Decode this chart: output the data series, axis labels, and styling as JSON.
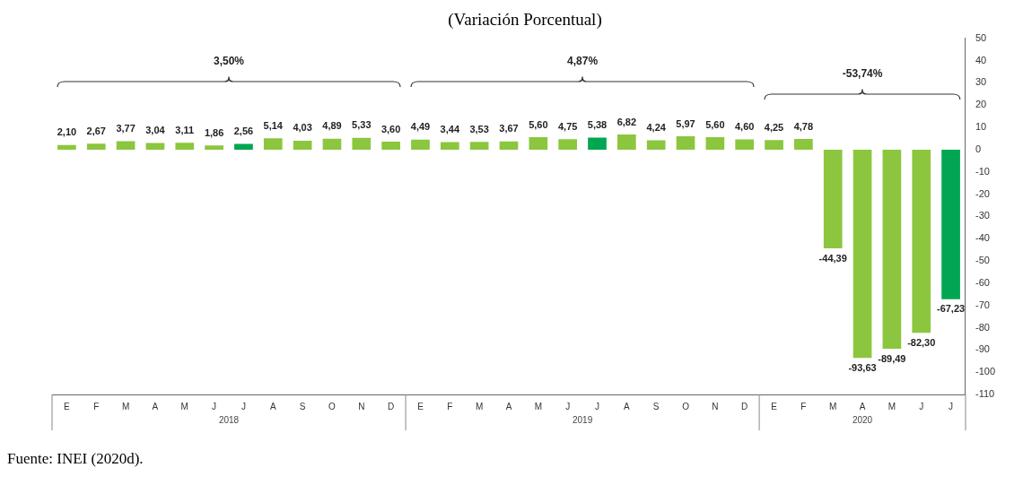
{
  "chart_data": {
    "type": "bar",
    "title": "(Variación Porcentual)",
    "categories": [
      "E",
      "F",
      "M",
      "A",
      "M",
      "J",
      "J",
      "A",
      "S",
      "O",
      "N",
      "D",
      "E",
      "F",
      "M",
      "A",
      "M",
      "J",
      "J",
      "A",
      "S",
      "O",
      "N",
      "D",
      "E",
      "F",
      "M",
      "A",
      "M",
      "J",
      "J"
    ],
    "values": [
      2.1,
      2.67,
      3.77,
      3.04,
      3.11,
      1.86,
      2.56,
      5.14,
      4.03,
      4.89,
      5.33,
      3.6,
      4.49,
      3.44,
      3.53,
      3.67,
      5.6,
      4.75,
      5.38,
      6.82,
      4.24,
      5.97,
      5.6,
      4.6,
      4.25,
      4.78,
      -44.39,
      -93.63,
      -89.49,
      -82.3,
      -67.23
    ],
    "value_labels": [
      "2,10",
      "2,67",
      "3,77",
      "3,04",
      "3,11",
      "1,86",
      "2,56",
      "5,14",
      "4,03",
      "4,89",
      "5,33",
      "3,60",
      "4,49",
      "3,44",
      "3,53",
      "3,67",
      "5,60",
      "4,75",
      "5,38",
      "6,82",
      "4,24",
      "5,97",
      "5,60",
      "4,60",
      "4,25",
      "4,78",
      "-44,39",
      "-93,63",
      "-89,49",
      "-82,30",
      "-67,23"
    ],
    "colors": [
      "#8cc63f",
      "#8cc63f",
      "#8cc63f",
      "#8cc63f",
      "#8cc63f",
      "#8cc63f",
      "#00a651",
      "#8cc63f",
      "#8cc63f",
      "#8cc63f",
      "#8cc63f",
      "#8cc63f",
      "#8cc63f",
      "#8cc63f",
      "#8cc63f",
      "#8cc63f",
      "#8cc63f",
      "#8cc63f",
      "#00a651",
      "#8cc63f",
      "#8cc63f",
      "#8cc63f",
      "#8cc63f",
      "#8cc63f",
      "#8cc63f",
      "#8cc63f",
      "#8cc63f",
      "#8cc63f",
      "#8cc63f",
      "#8cc63f",
      "#00a651"
    ],
    "ylim": [
      -110,
      50
    ],
    "yticks": [
      50,
      40,
      30,
      20,
      10,
      0,
      -10,
      -20,
      -30,
      -40,
      -50,
      -60,
      -70,
      -80,
      -90,
      -100,
      -110
    ],
    "grid": false,
    "legend": false,
    "annotations": [
      "3,50%",
      "4,87%",
      "-53,74%",
      "2018",
      "2019",
      "2020",
      "Fuente: INEI (2020d)."
    ]
  }
}
